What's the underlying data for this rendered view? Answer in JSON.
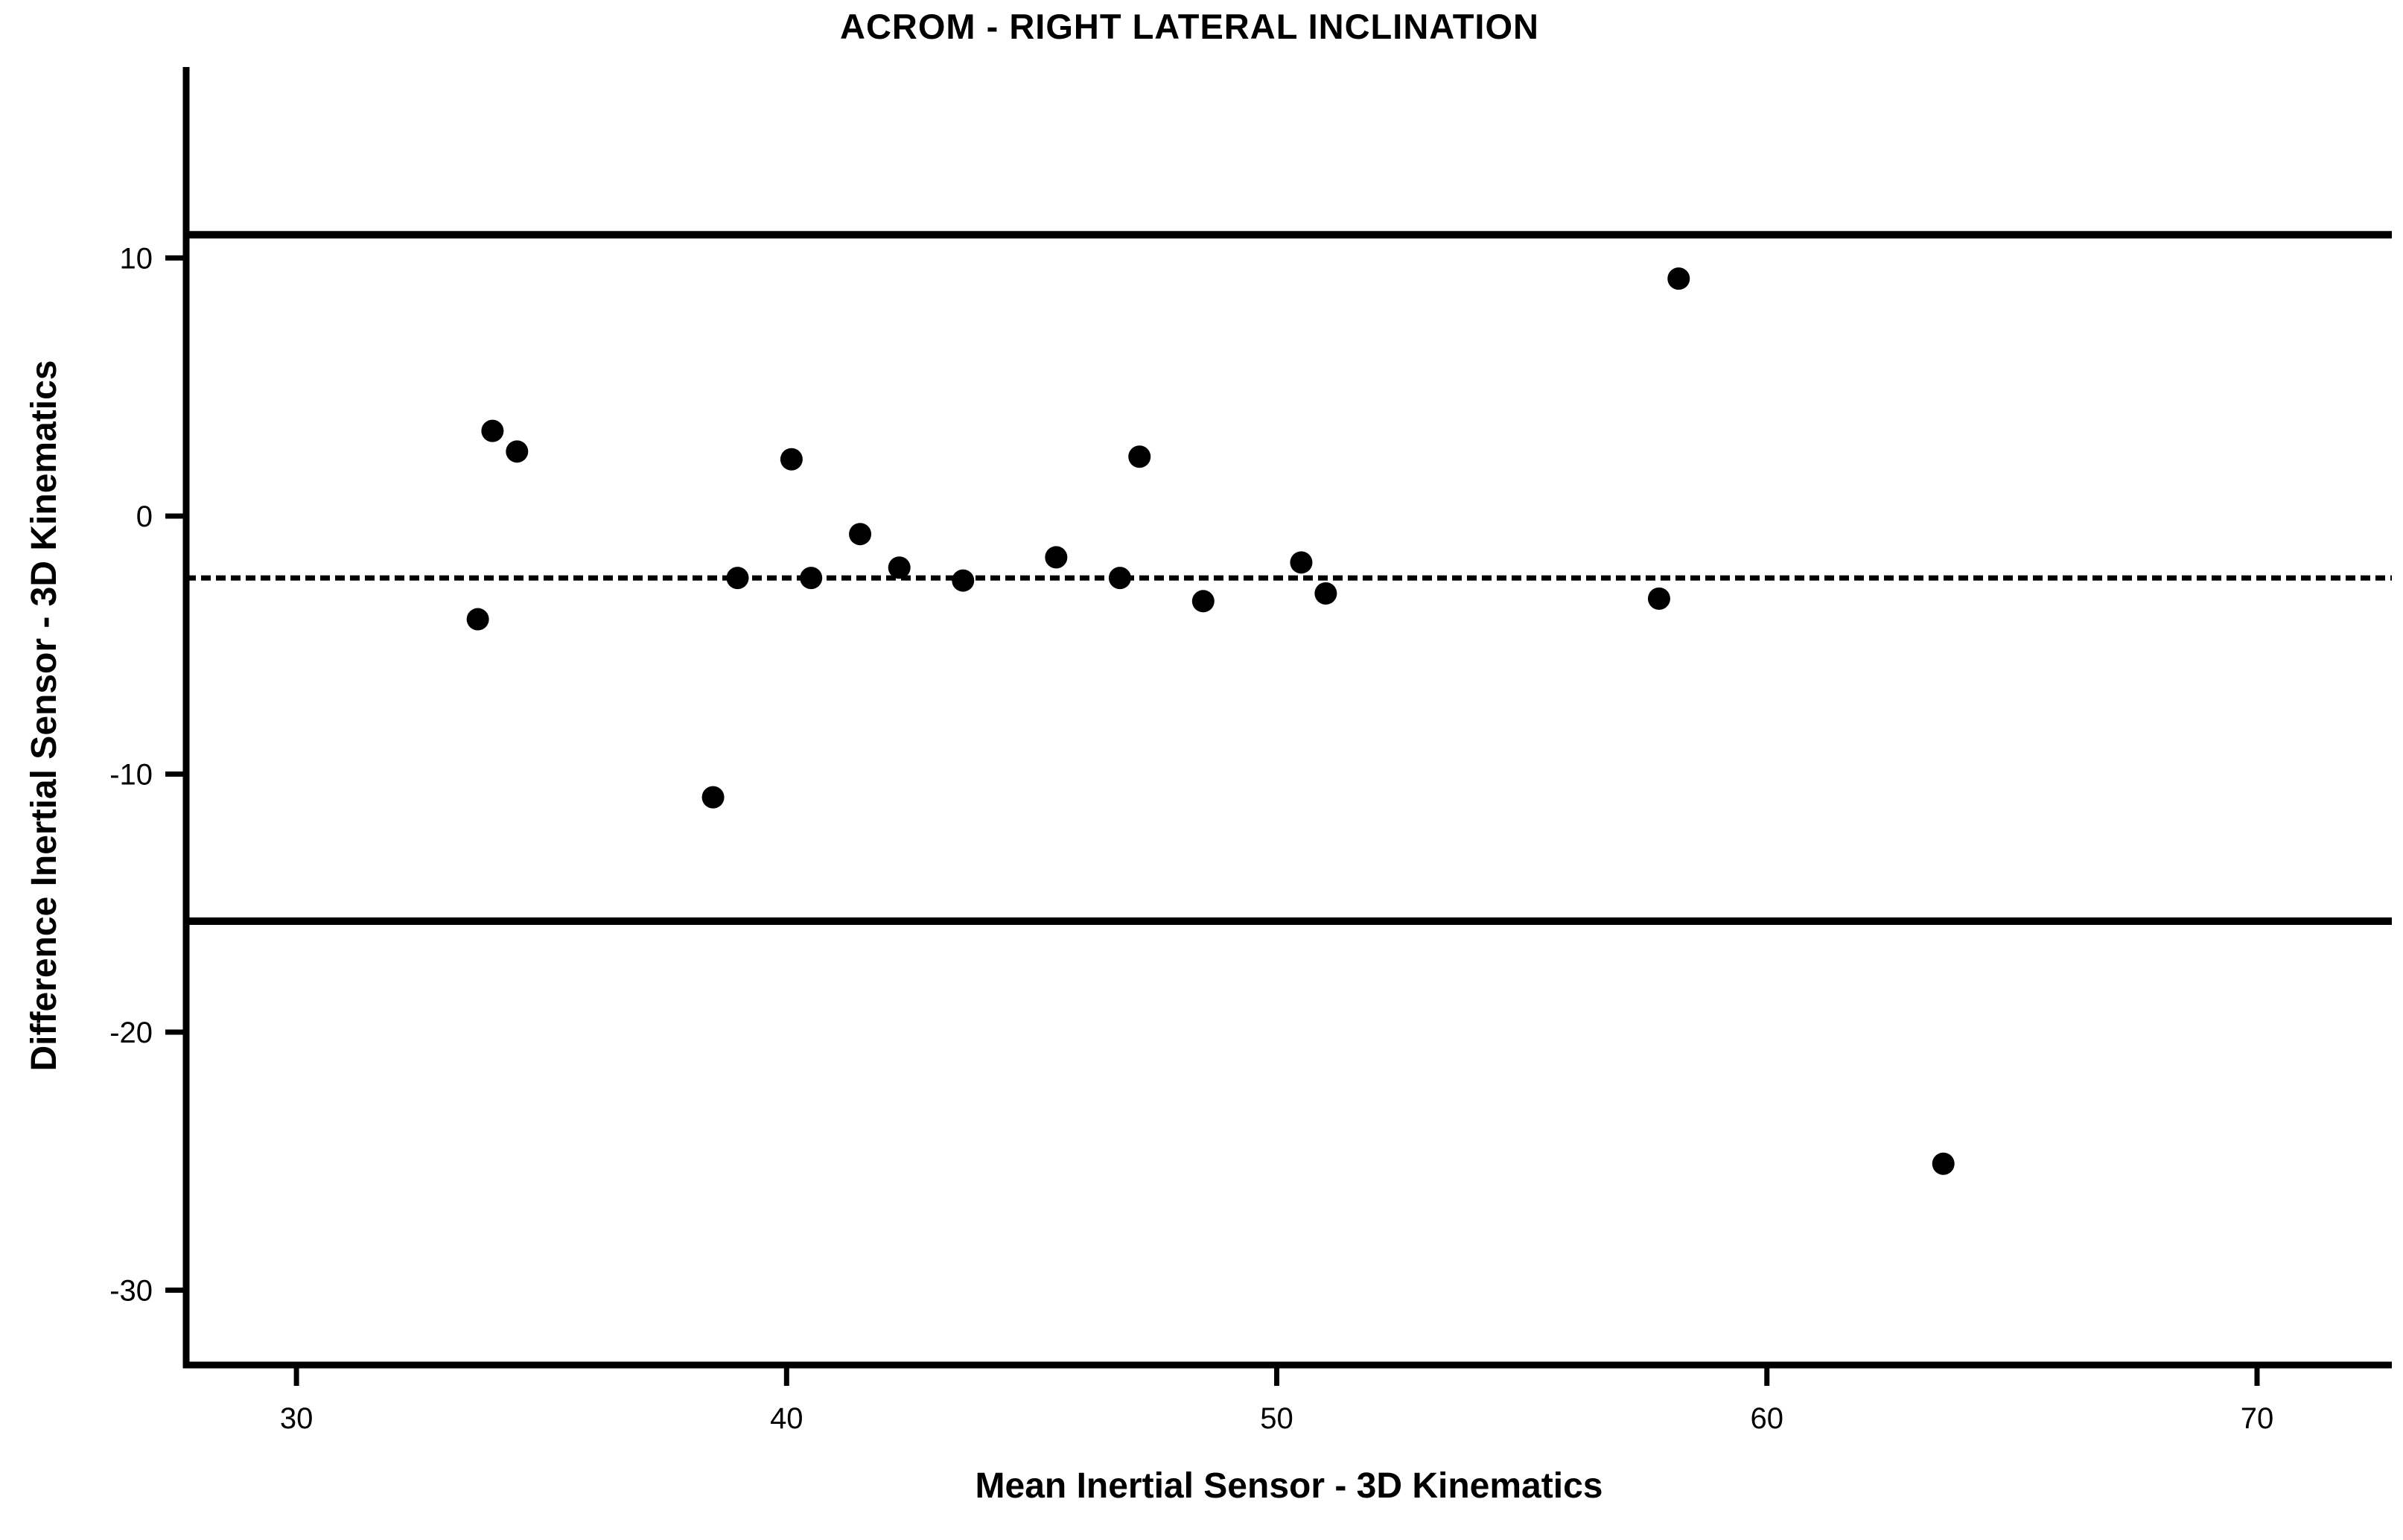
{
  "chart_data": {
    "type": "scatter",
    "title": "ACROM - RIGHT LATERAL INCLINATION",
    "xlabel": "Mean Inertial Sensor - 3D Kinematics",
    "ylabel": "Difference Inertial Sensor - 3D Kinematics",
    "xlim": [
      27.75,
      72.75
    ],
    "ylim": [
      -32.9,
      17.4
    ],
    "grid": false,
    "legend": false,
    "x_ticks": [
      {
        "value": 30,
        "label": "30"
      },
      {
        "value": 40,
        "label": "40"
      },
      {
        "value": 50,
        "label": "50"
      },
      {
        "value": 60,
        "label": "60"
      },
      {
        "value": 70,
        "label": "70"
      }
    ],
    "y_ticks": [
      {
        "value": 10,
        "label": "10"
      },
      {
        "value": 0,
        "label": "0"
      },
      {
        "value": -10,
        "label": "-10"
      },
      {
        "value": -20,
        "label": "-20"
      },
      {
        "value": -30,
        "label": "-30"
      }
    ],
    "points": [
      [
        33.7,
        -4.0
      ],
      [
        34.0,
        3.3
      ],
      [
        34.5,
        2.5
      ],
      [
        38.5,
        -10.9
      ],
      [
        39.0,
        -2.4
      ],
      [
        40.1,
        2.2
      ],
      [
        40.5,
        -2.4
      ],
      [
        41.5,
        -0.7
      ],
      [
        42.3,
        -2.0
      ],
      [
        43.6,
        -2.5
      ],
      [
        45.5,
        -1.6
      ],
      [
        46.8,
        -2.4
      ],
      [
        47.2,
        2.3
      ],
      [
        48.5,
        -3.3
      ],
      [
        50.5,
        -1.8
      ],
      [
        51.0,
        -3.0
      ],
      [
        57.8,
        -3.2
      ],
      [
        58.2,
        9.2
      ],
      [
        63.6,
        -25.1
      ]
    ],
    "reference_lines": [
      {
        "name": "upper-limit-of-agreement",
        "value": 10.9,
        "style": "solid"
      },
      {
        "name": "mean-difference",
        "value": -2.4,
        "style": "dashed"
      },
      {
        "name": "lower-limit-of-agreement",
        "value": -15.7,
        "style": "solid"
      }
    ],
    "colors": {
      "foreground": "#000000",
      "background": "#ffffff",
      "point": "#000000"
    }
  }
}
